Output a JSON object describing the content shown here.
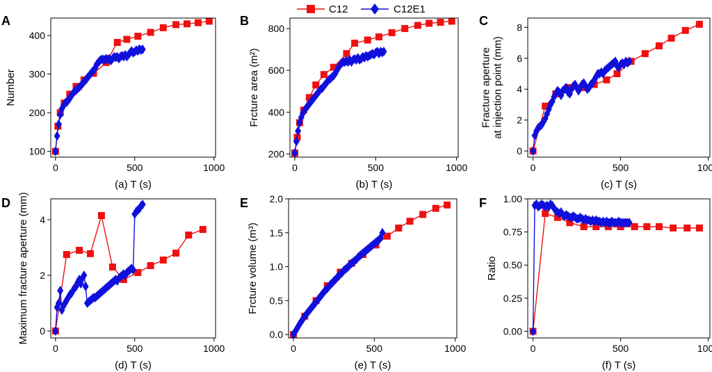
{
  "legend": [
    {
      "name": "C12",
      "color": "#ee1111",
      "marker": "square"
    },
    {
      "name": "C12E1",
      "color": "#1010dd",
      "marker": "diamond"
    }
  ],
  "chart_data": [
    {
      "panel": "A",
      "type": "line",
      "xlabel": "(a) T (s)",
      "ylabel": [
        "Number"
      ],
      "xlim": [
        -30,
        1010
      ],
      "ylim": [
        85,
        445
      ],
      "xticks": [
        0,
        500,
        1000
      ],
      "yticks": [
        100,
        200,
        300,
        400
      ],
      "series": [
        {
          "name": "C12",
          "x": [
            0,
            15,
            30,
            55,
            90,
            130,
            180,
            240,
            320,
            390,
            450,
            520,
            600,
            680,
            760,
            830,
            900,
            970
          ],
          "y": [
            100,
            165,
            200,
            225,
            248,
            268,
            285,
            302,
            330,
            382,
            390,
            398,
            408,
            420,
            428,
            430,
            433,
            437
          ]
        },
        {
          "name": "C12E1",
          "x": [
            0,
            10,
            20,
            30,
            40,
            50,
            60,
            70,
            80,
            90,
            100,
            110,
            120,
            130,
            140,
            150,
            160,
            170,
            180,
            190,
            200,
            210,
            220,
            230,
            240,
            250,
            260,
            270,
            280,
            290,
            300,
            310,
            320,
            330,
            340,
            350,
            360,
            370,
            380,
            390,
            400,
            410,
            420,
            430,
            440,
            450,
            460,
            470,
            480,
            490,
            500,
            510,
            520,
            530,
            540,
            550
          ],
          "y": [
            100,
            140,
            170,
            195,
            210,
            218,
            225,
            228,
            232,
            237,
            245,
            250,
            255,
            258,
            262,
            266,
            270,
            275,
            280,
            285,
            290,
            295,
            300,
            305,
            310,
            315,
            325,
            330,
            335,
            338,
            338,
            337,
            340,
            338,
            340,
            335,
            340,
            345,
            343,
            345,
            340,
            345,
            348,
            345,
            350,
            345,
            350,
            355,
            360,
            355,
            358,
            362,
            360,
            365,
            362,
            364
          ]
        }
      ]
    },
    {
      "panel": "B",
      "type": "line",
      "xlabel": "(b) T (s)",
      "ylabel": [
        "Frcture area  (m²)"
      ],
      "xlim": [
        -30,
        1010
      ],
      "ylim": [
        185,
        850
      ],
      "xticks": [
        0,
        500,
        1000
      ],
      "yticks": [
        200,
        400,
        600,
        800
      ],
      "series": [
        {
          "name": "C12",
          "x": [
            0,
            15,
            30,
            55,
            90,
            130,
            180,
            240,
            320,
            370,
            450,
            520,
            600,
            680,
            760,
            830,
            900,
            970
          ],
          "y": [
            205,
            280,
            350,
            410,
            470,
            530,
            580,
            615,
            680,
            730,
            745,
            760,
            780,
            800,
            815,
            825,
            830,
            835
          ]
        },
        {
          "name": "C12E1",
          "x": [
            0,
            10,
            20,
            30,
            40,
            50,
            60,
            70,
            80,
            90,
            100,
            110,
            120,
            130,
            140,
            150,
            160,
            170,
            180,
            190,
            200,
            210,
            220,
            230,
            240,
            250,
            260,
            270,
            280,
            290,
            300,
            310,
            320,
            330,
            340,
            350,
            360,
            370,
            380,
            390,
            400,
            410,
            420,
            430,
            440,
            450,
            460,
            470,
            480,
            490,
            500,
            510,
            520,
            530,
            540,
            550
          ],
          "y": [
            205,
            260,
            310,
            350,
            375,
            395,
            410,
            420,
            430,
            440,
            450,
            460,
            470,
            480,
            490,
            500,
            510,
            515,
            525,
            535,
            545,
            555,
            560,
            568,
            575,
            585,
            600,
            615,
            625,
            635,
            640,
            640,
            645,
            640,
            650,
            640,
            650,
            655,
            650,
            660,
            650,
            655,
            665,
            660,
            670,
            665,
            670,
            675,
            680,
            675,
            685,
            690,
            680,
            690,
            685,
            690
          ]
        }
      ]
    },
    {
      "panel": "C",
      "type": "line",
      "xlabel": "(c) T (s)",
      "ylabel": [
        "Fracture aperture",
        "at injection point  (mm)"
      ],
      "xlim": [
        -30,
        1010
      ],
      "ylim": [
        -0.4,
        8.6
      ],
      "xticks": [
        0,
        500,
        1000
      ],
      "yticks": [
        0,
        2,
        4,
        6,
        8
      ],
      "series": [
        {
          "name": "C12",
          "x": [
            0,
            70,
            130,
            200,
            280,
            350,
            420,
            480,
            560,
            640,
            720,
            790,
            870,
            950
          ],
          "y": [
            0,
            2.9,
            3.7,
            4.1,
            4.1,
            4.3,
            4.6,
            5.0,
            5.8,
            6.3,
            6.8,
            7.3,
            7.8,
            8.2
          ]
        },
        {
          "name": "C12E1",
          "x": [
            0,
            10,
            20,
            30,
            40,
            50,
            60,
            70,
            80,
            90,
            100,
            110,
            120,
            130,
            140,
            150,
            160,
            170,
            180,
            190,
            200,
            210,
            220,
            230,
            240,
            250,
            260,
            270,
            280,
            290,
            300,
            310,
            320,
            330,
            340,
            350,
            360,
            370,
            380,
            390,
            400,
            410,
            420,
            430,
            440,
            450,
            460,
            470,
            480,
            490,
            500,
            510,
            520,
            530,
            540,
            550
          ],
          "y": [
            0,
            1.0,
            1.3,
            1.5,
            1.6,
            1.7,
            1.9,
            2.1,
            2.4,
            2.7,
            3.0,
            3.2,
            3.5,
            3.7,
            3.9,
            3.8,
            3.6,
            3.9,
            4.0,
            4.1,
            3.8,
            3.7,
            4.0,
            4.2,
            4.3,
            4.1,
            3.9,
            4.1,
            4.3,
            4.4,
            4.2,
            4.0,
            4.1,
            4.3,
            4.4,
            4.6,
            4.8,
            5.0,
            5.0,
            5.1,
            5.0,
            5.2,
            5.3,
            5.4,
            5.5,
            5.6,
            5.7,
            5.8,
            5.5,
            5.4,
            5.6,
            5.7,
            5.6,
            5.8,
            5.7,
            5.8
          ]
        }
      ]
    },
    {
      "panel": "D",
      "type": "line",
      "xlabel": "(d) T (s)",
      "ylabel": [
        "Maximum fracture aperture (mm)"
      ],
      "xlim": [
        -30,
        1010
      ],
      "ylim": [
        -0.25,
        4.75
      ],
      "xticks": [
        0,
        500,
        1000
      ],
      "yticks": [
        0,
        2,
        4
      ],
      "series": [
        {
          "name": "C12",
          "x": [
            0,
            70,
            150,
            220,
            290,
            360,
            430,
            520,
            600,
            680,
            760,
            840,
            930
          ],
          "y": [
            0,
            2.75,
            2.9,
            2.78,
            4.15,
            2.3,
            1.85,
            2.1,
            2.35,
            2.55,
            2.8,
            3.45,
            3.65
          ]
        },
        {
          "name": "C12E1",
          "x": [
            0,
            10,
            20,
            30,
            40,
            50,
            60,
            70,
            80,
            90,
            100,
            110,
            120,
            130,
            140,
            150,
            160,
            170,
            180,
            190,
            200,
            210,
            220,
            230,
            240,
            250,
            260,
            270,
            280,
            290,
            300,
            310,
            320,
            330,
            340,
            350,
            360,
            370,
            380,
            390,
            400,
            410,
            420,
            430,
            440,
            450,
            460,
            470,
            480,
            490,
            500,
            510,
            520,
            530,
            540,
            550
          ],
          "y": [
            0,
            0.85,
            1.0,
            1.45,
            0.75,
            0.9,
            1.0,
            1.1,
            1.2,
            1.3,
            1.35,
            1.45,
            1.55,
            1.6,
            1.75,
            1.85,
            1.7,
            1.9,
            2.0,
            1.6,
            1.0,
            1.05,
            1.1,
            1.15,
            1.2,
            1.2,
            1.25,
            1.3,
            1.35,
            1.4,
            1.45,
            1.5,
            1.55,
            1.6,
            1.65,
            1.7,
            1.75,
            1.8,
            1.85,
            1.8,
            1.9,
            1.95,
            2.0,
            2.05,
            2.0,
            2.1,
            2.15,
            2.2,
            2.25,
            2.2,
            4.2,
            4.3,
            4.35,
            4.4,
            4.5,
            4.55
          ]
        }
      ]
    },
    {
      "panel": "E",
      "type": "line",
      "xlabel": "(e) T (s)",
      "ylabel": [
        "Frcture volume (m³)"
      ],
      "xlim": [
        -30,
        1010
      ],
      "ylim": [
        -0.05,
        2.0
      ],
      "xticks": [
        0,
        500,
        1000
      ],
      "yticks": [
        0.0,
        0.5,
        1.0,
        1.5,
        2.0
      ],
      "series": [
        {
          "name": "C12",
          "x": [
            0,
            70,
            140,
            210,
            290,
            360,
            430,
            510,
            580,
            650,
            720,
            800,
            880,
            950
          ],
          "y": [
            0,
            0.27,
            0.5,
            0.72,
            0.92,
            1.05,
            1.18,
            1.32,
            1.45,
            1.57,
            1.67,
            1.77,
            1.86,
            1.91
          ]
        },
        {
          "name": "C12E1",
          "x": [
            0,
            10,
            20,
            30,
            40,
            50,
            60,
            70,
            80,
            90,
            100,
            110,
            120,
            130,
            140,
            150,
            160,
            170,
            180,
            190,
            200,
            210,
            220,
            230,
            240,
            250,
            260,
            270,
            280,
            290,
            300,
            310,
            320,
            330,
            340,
            350,
            360,
            370,
            380,
            390,
            400,
            410,
            420,
            430,
            440,
            450,
            460,
            470,
            480,
            490,
            500,
            510,
            520,
            530,
            540,
            550
          ],
          "y": [
            0,
            0.04,
            0.08,
            0.12,
            0.16,
            0.2,
            0.23,
            0.27,
            0.3,
            0.33,
            0.36,
            0.39,
            0.42,
            0.45,
            0.48,
            0.51,
            0.54,
            0.57,
            0.6,
            0.63,
            0.66,
            0.68,
            0.71,
            0.74,
            0.76,
            0.79,
            0.81,
            0.84,
            0.86,
            0.89,
            0.91,
            0.94,
            0.96,
            0.98,
            1.0,
            1.03,
            1.05,
            1.07,
            1.09,
            1.11,
            1.14,
            1.16,
            1.18,
            1.2,
            1.22,
            1.24,
            1.26,
            1.28,
            1.3,
            1.32,
            1.34,
            1.36,
            1.38,
            1.4,
            1.43,
            1.5
          ]
        }
      ]
    },
    {
      "panel": "F",
      "type": "line",
      "xlabel": "(f) T (s)",
      "ylabel": [
        "Ratio"
      ],
      "xlim": [
        -30,
        1010
      ],
      "ylim": [
        -0.05,
        1.0
      ],
      "xticks": [
        0,
        500,
        1000
      ],
      "yticks": [
        0.0,
        0.25,
        0.5,
        0.75,
        1.0
      ],
      "series": [
        {
          "name": "C12",
          "x": [
            0,
            70,
            140,
            210,
            290,
            360,
            430,
            500,
            580,
            650,
            720,
            800,
            880,
            950
          ],
          "y": [
            0,
            0.89,
            0.86,
            0.82,
            0.79,
            0.79,
            0.79,
            0.79,
            0.79,
            0.79,
            0.79,
            0.78,
            0.78,
            0.78
          ]
        },
        {
          "name": "C12E1",
          "x": [
            0,
            10,
            20,
            30,
            40,
            50,
            60,
            70,
            80,
            90,
            100,
            110,
            120,
            130,
            140,
            150,
            160,
            170,
            180,
            190,
            200,
            210,
            220,
            230,
            240,
            250,
            260,
            270,
            280,
            290,
            300,
            310,
            320,
            330,
            340,
            350,
            360,
            370,
            380,
            390,
            400,
            410,
            420,
            430,
            440,
            450,
            460,
            470,
            480,
            490,
            500,
            510,
            520,
            530,
            540,
            550
          ],
          "y": [
            0,
            0.95,
            0.96,
            0.94,
            0.95,
            0.96,
            0.95,
            0.94,
            0.95,
            0.94,
            0.96,
            0.95,
            0.93,
            0.91,
            0.9,
            0.89,
            0.9,
            0.88,
            0.87,
            0.88,
            0.87,
            0.86,
            0.86,
            0.87,
            0.86,
            0.85,
            0.85,
            0.86,
            0.85,
            0.84,
            0.85,
            0.84,
            0.84,
            0.83,
            0.84,
            0.83,
            0.84,
            0.83,
            0.83,
            0.82,
            0.83,
            0.82,
            0.83,
            0.82,
            0.82,
            0.83,
            0.82,
            0.82,
            0.82,
            0.83,
            0.82,
            0.82,
            0.82,
            0.82,
            0.82,
            0.82
          ]
        }
      ]
    }
  ]
}
